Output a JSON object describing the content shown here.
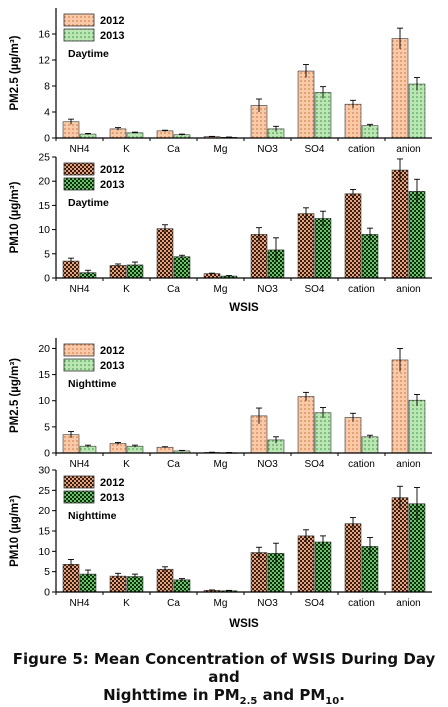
{
  "colors": {
    "s2012_fill": "#f9c9a8",
    "s2012_dots": "#c8743e",
    "s2013_fill": "#b9e6b3",
    "s2013_dots": "#3e8f3a",
    "pm10_2012_fill": "#e2a37e",
    "pm10_2012_dots": "#3a1d10",
    "pm10_2013_fill": "#6cc06a",
    "pm10_2013_dots": "#0c300c",
    "axis": "#000000"
  },
  "chart_data": [
    {
      "type": "bar",
      "panel_label": "Daytime",
      "ylabel": "PM2.5 (µg/m³)",
      "xlabel": "",
      "categories": [
        "NH4",
        "K",
        "Ca",
        "Mg",
        "NO3",
        "SO4",
        "cation",
        "anion"
      ],
      "ylim": [
        0,
        20
      ],
      "yticks": [
        0,
        4,
        8,
        12,
        16
      ],
      "legend": "top-left",
      "series": [
        {
          "name": "2012",
          "values": [
            2.5,
            1.4,
            1.1,
            0.2,
            5.0,
            10.3,
            5.2,
            15.3
          ],
          "errors": [
            0.4,
            0.2,
            0.1,
            0.05,
            1.0,
            1.0,
            0.6,
            1.6
          ]
        },
        {
          "name": "2013",
          "values": [
            0.6,
            0.8,
            0.5,
            0.1,
            1.4,
            7.0,
            1.9,
            8.3
          ],
          "errors": [
            0.1,
            0.1,
            0.1,
            0.05,
            0.4,
            0.9,
            0.2,
            1.0
          ]
        }
      ]
    },
    {
      "type": "bar",
      "panel_label": "Daytime",
      "ylabel": "PM10 (µg/m³)",
      "xlabel": "WSIS",
      "categories": [
        "NH4",
        "K",
        "Ca",
        "Mg",
        "NO3",
        "SO4",
        "cation",
        "anion"
      ],
      "ylim": [
        0,
        25
      ],
      "yticks": [
        0,
        5,
        10,
        15,
        20,
        25
      ],
      "legend": "top-left",
      "series": [
        {
          "name": "2012",
          "values": [
            3.5,
            2.6,
            10.2,
            0.9,
            9.0,
            13.3,
            17.4,
            22.3
          ],
          "errors": [
            0.6,
            0.3,
            0.8,
            0.1,
            1.4,
            1.2,
            0.9,
            2.3
          ]
        },
        {
          "name": "2013",
          "values": [
            1.1,
            2.7,
            4.4,
            0.4,
            5.8,
            12.3,
            9.0,
            17.9
          ],
          "errors": [
            0.5,
            0.6,
            0.3,
            0.1,
            2.5,
            1.5,
            1.3,
            2.5
          ]
        }
      ]
    },
    {
      "type": "bar",
      "panel_label": "Nighttime",
      "ylabel": "PM2.5 (µg/m³)",
      "xlabel": "",
      "categories": [
        "NH4",
        "K",
        "Ca",
        "Mg",
        "NO3",
        "SO4",
        "cation",
        "anion"
      ],
      "ylim": [
        0,
        22
      ],
      "yticks": [
        0,
        5,
        10,
        15,
        20
      ],
      "legend": "top-left",
      "series": [
        {
          "name": "2012",
          "values": [
            3.5,
            1.8,
            1.1,
            0.1,
            7.1,
            10.8,
            6.8,
            17.8
          ],
          "errors": [
            0.6,
            0.2,
            0.1,
            0.05,
            1.5,
            0.8,
            0.8,
            2.2
          ]
        },
        {
          "name": "2013",
          "values": [
            1.3,
            1.3,
            0.4,
            0.05,
            2.5,
            7.7,
            3.1,
            10.1
          ],
          "errors": [
            0.2,
            0.2,
            0.1,
            0.05,
            0.6,
            1.0,
            0.3,
            1.1
          ]
        }
      ]
    },
    {
      "type": "bar",
      "panel_label": "Nighttime",
      "ylabel": "PM10 (µg/m³)",
      "xlabel": "WSIS",
      "categories": [
        "NH4",
        "K",
        "Ca",
        "Mg",
        "NO3",
        "SO4",
        "cation",
        "anion"
      ],
      "ylim": [
        0,
        30
      ],
      "yticks": [
        0,
        5,
        10,
        15,
        20,
        25,
        30
      ],
      "legend": "top-left",
      "series": [
        {
          "name": "2012",
          "values": [
            6.8,
            3.9,
            5.6,
            0.4,
            9.7,
            13.8,
            16.8,
            23.2
          ],
          "errors": [
            1.2,
            0.7,
            0.6,
            0.1,
            1.3,
            1.5,
            1.5,
            2.8
          ]
        },
        {
          "name": "2013",
          "values": [
            4.4,
            3.8,
            3.0,
            0.3,
            9.5,
            12.3,
            11.2,
            21.7
          ],
          "errors": [
            1.0,
            0.6,
            0.3,
            0.1,
            2.5,
            1.5,
            2.2,
            4.0
          ]
        }
      ]
    }
  ],
  "caption": {
    "line1": "Figure 5: Mean Concentration of WSIS During Day and",
    "line2_a": "Nighttime in PM",
    "line2_sub1": "2.5",
    "line2_b": " and PM",
    "line2_sub2": "10",
    "line2_c": "."
  }
}
